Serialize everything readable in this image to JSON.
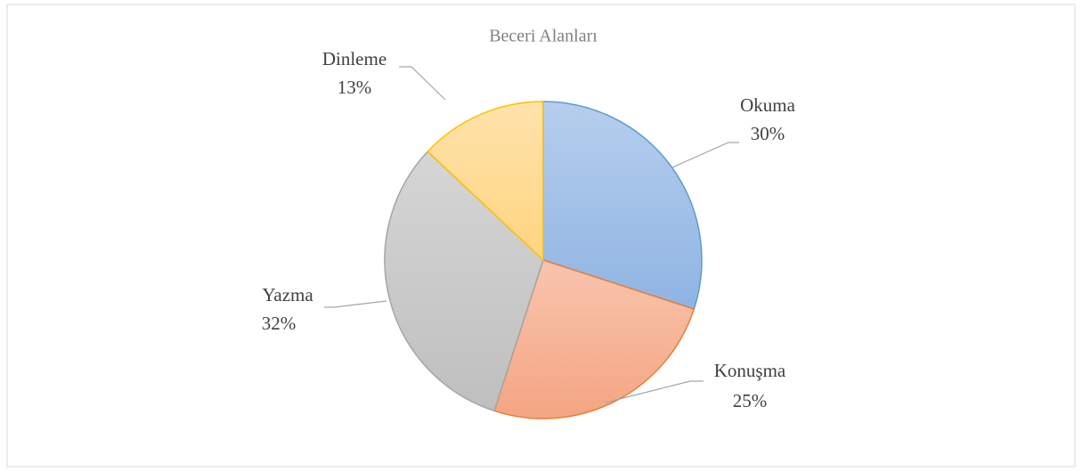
{
  "chart_data": {
    "type": "pie",
    "title": "Beceri Alanları",
    "categories": [
      "Okuma",
      "Konuşma",
      "Yazma",
      "Dinleme"
    ],
    "values": [
      30,
      25,
      32,
      13
    ],
    "value_labels": [
      "30%",
      "25%",
      "32%",
      "13%"
    ],
    "colors": [
      "#8fb4e3",
      "#f4a582",
      "#bfbfbf",
      "#ffd47f"
    ],
    "edge_colors": [
      "#5b9bd5",
      "#ed7d31",
      "#a5a5a5",
      "#ffc000"
    ]
  }
}
